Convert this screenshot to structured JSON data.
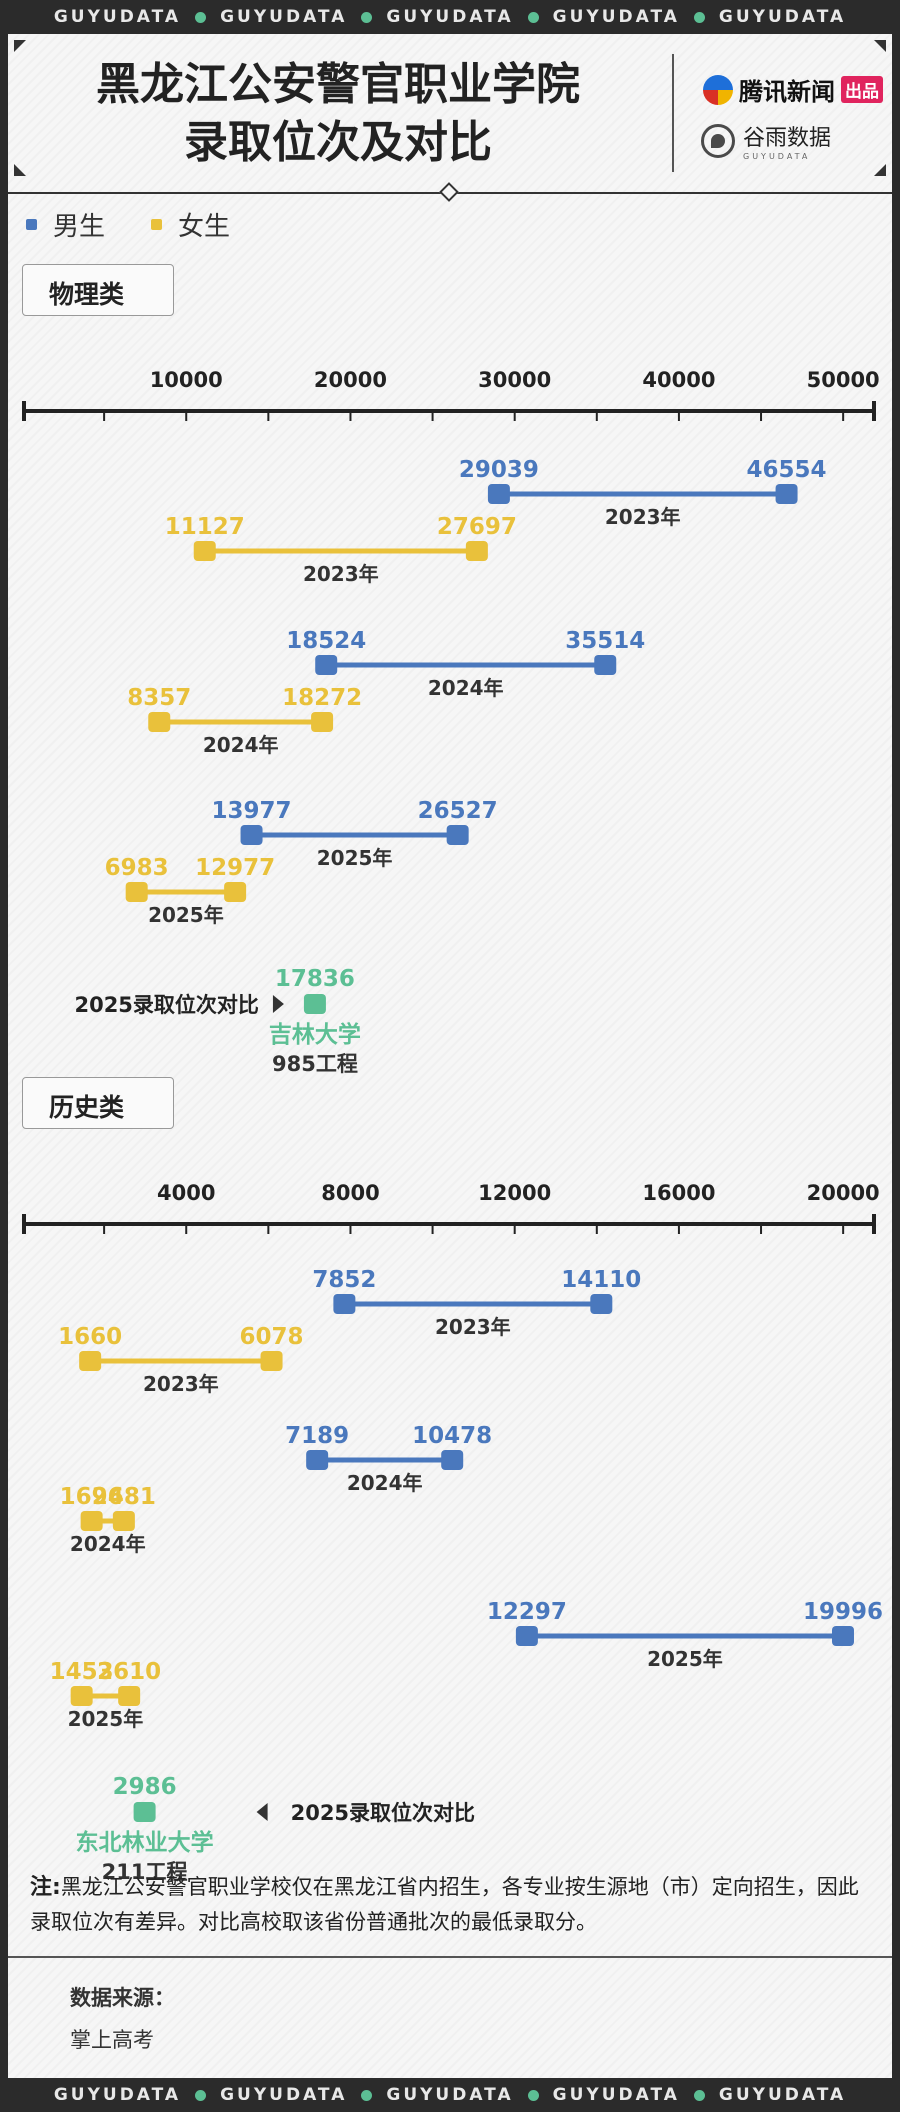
{
  "strip_words": [
    "GUYUDATA",
    "GUYUDATA",
    "GUYUDATA",
    "GUYUDATA",
    "GUYUDATA"
  ],
  "title_line1": "黑龙江公安警官职业学院",
  "title_line2": "录取位次及对比",
  "brand_tencent": "腾讯新闻",
  "brand_tencent_tag": "出品",
  "brand_guyu": "谷雨数据",
  "brand_guyu_sub": "GUYUDATA",
  "colors": {
    "male": "#4a78bd",
    "female": "#e9c13b",
    "compare": "#5cbf94"
  },
  "legend": [
    {
      "label": "男生",
      "color": "#4a78bd"
    },
    {
      "label": "女生",
      "color": "#e9c13b"
    }
  ],
  "chart_data": [
    {
      "type": "range",
      "section_label": "物理类",
      "xlim": [
        0,
        52000
      ],
      "ticks": [
        10000,
        20000,
        30000,
        40000,
        50000
      ],
      "ranges": [
        {
          "gender": "male",
          "year_label": "2023年",
          "min": 29039,
          "max": 46554
        },
        {
          "gender": "female",
          "year_label": "2023年",
          "min": 11127,
          "max": 27697
        },
        {
          "gender": "male",
          "year_label": "2024年",
          "min": 18524,
          "max": 35514
        },
        {
          "gender": "female",
          "year_label": "2024年",
          "min": 8357,
          "max": 18272
        },
        {
          "gender": "male",
          "year_label": "2025年",
          "min": 13977,
          "max": 26527
        },
        {
          "gender": "female",
          "year_label": "2025年",
          "min": 6983,
          "max": 12977
        }
      ],
      "comparison": {
        "label": "2025录取位次对比",
        "value": 17836,
        "school": "吉林大学",
        "tier": "985工程"
      }
    },
    {
      "type": "range",
      "section_label": "历史类",
      "xlim": [
        0,
        20800
      ],
      "ticks": [
        4000,
        8000,
        12000,
        16000,
        20000
      ],
      "ranges": [
        {
          "gender": "male",
          "year_label": "2023年",
          "min": 7852,
          "max": 14110
        },
        {
          "gender": "female",
          "year_label": "2023年",
          "min": 1660,
          "max": 6078
        },
        {
          "gender": "male",
          "year_label": "2024年",
          "min": 7189,
          "max": 10478
        },
        {
          "gender": "female",
          "year_label": "2024年",
          "min": 1696,
          "max": 2481
        },
        {
          "gender": "male",
          "year_label": "2025年",
          "min": 12297,
          "max": 19996
        },
        {
          "gender": "female",
          "year_label": "2025年",
          "min": 1453,
          "max": 2610
        }
      ],
      "comparison": {
        "label": "2025录取位次对比",
        "value": 2986,
        "school": "东北林业大学",
        "tier": "211工程"
      }
    }
  ],
  "footnote_prefix": "注:",
  "footnote_text": "黑龙江公安警官职业学校仅在黑龙江省内招生，各专业按生源地（市）定向招生，因此录取位次有差异。对比高校取该省份普通批次的最低录取分。",
  "source_title": "数据来源：",
  "source_text": "掌上高考"
}
